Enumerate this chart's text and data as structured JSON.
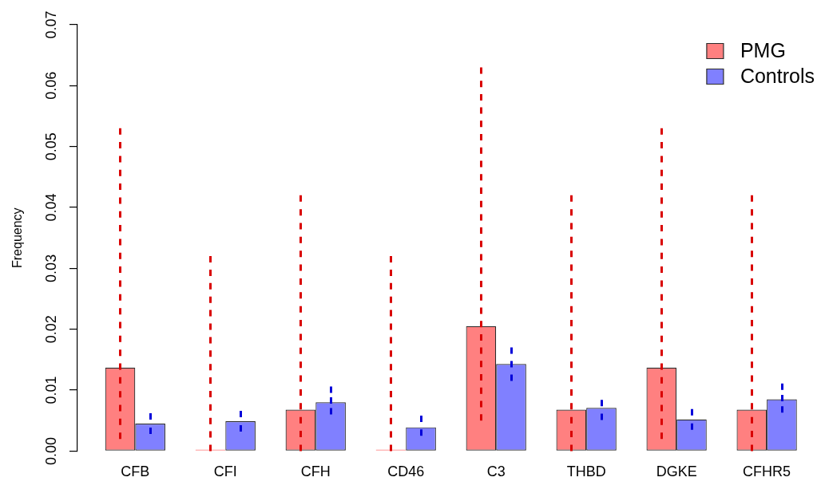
{
  "chart_data": {
    "type": "bar",
    "ylabel": "Frequency",
    "categories": [
      "CFB",
      "CFI",
      "CFH",
      "CD46",
      "C3",
      "THBD",
      "DGKE",
      "CFHR5"
    ],
    "series": [
      {
        "name": "PMG",
        "color": "#ff8080",
        "values": [
          0.0137,
          0,
          0.0068,
          0,
          0.0205,
          0.0068,
          0.0137,
          0.0068
        ],
        "errors": [
          [
            0.002,
            0.053
          ],
          [
            0,
            0.032
          ],
          [
            0,
            0.042
          ],
          [
            0,
            0.032
          ],
          [
            0.005,
            0.063
          ],
          [
            0,
            0.042
          ],
          [
            0.002,
            0.053
          ],
          [
            0,
            0.042
          ]
        ]
      },
      {
        "name": "Controls",
        "color": "#8080ff",
        "values": [
          0.0045,
          0.0049,
          0.008,
          0.0039,
          0.0143,
          0.0071,
          0.0052,
          0.0085
        ],
        "errors": [
          [
            0.0028,
            0.0062
          ],
          [
            0.0032,
            0.0066
          ],
          [
            0.006,
            0.0106
          ],
          [
            0.0025,
            0.0058
          ],
          [
            0.0115,
            0.017
          ],
          [
            0.0051,
            0.0084
          ],
          [
            0.0035,
            0.0069
          ],
          [
            0.0063,
            0.0111
          ]
        ]
      }
    ],
    "ylim": [
      0,
      0.07
    ],
    "yticks": [
      {
        "value": 0,
        "label": "0.00"
      },
      {
        "value": 0.01,
        "label": "0.01"
      },
      {
        "value": 0.02,
        "label": "0.02"
      },
      {
        "value": 0.03,
        "label": "0.03"
      },
      {
        "value": 0.04,
        "label": "0.04"
      },
      {
        "value": 0.05,
        "label": "0.05"
      },
      {
        "value": 0.06,
        "label": "0.06"
      },
      {
        "value": 0.07,
        "label": "0.07"
      }
    ],
    "legend": "top right"
  }
}
